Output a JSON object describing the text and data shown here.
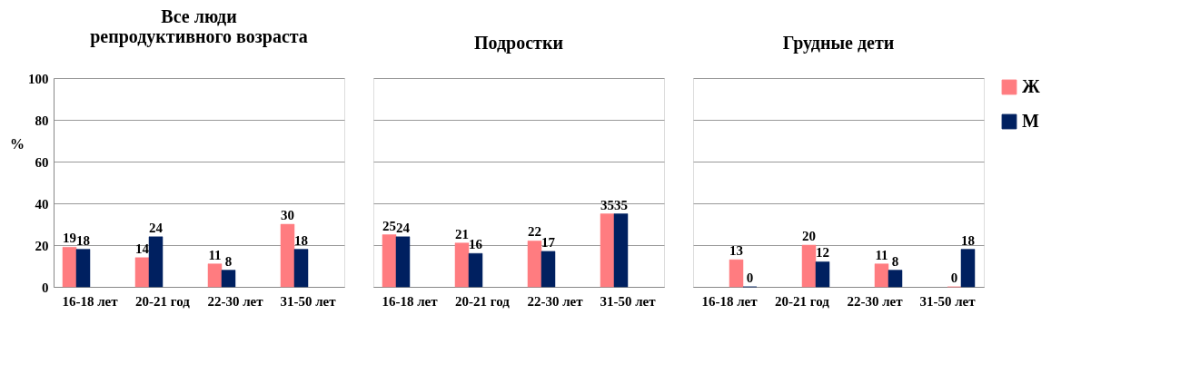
{
  "chart_data": [
    {
      "type": "bar",
      "title": "Все люди репродуктивного возраста",
      "ylabel": "%",
      "categories": [
        "16-18 лет",
        "20-21 год",
        "22-30 лет",
        "31-50 лет"
      ],
      "series": [
        {
          "color": "#ff7c80",
          "values": [
            19,
            14,
            11,
            30
          ]
        },
        {
          "color": "#002060",
          "values": [
            18,
            24,
            8,
            18
          ]
        }
      ],
      "ylim": [
        0,
        100
      ],
      "yticks": [
        0,
        20,
        40,
        60,
        80,
        100
      ],
      "grid": "y",
      "data_labels": true
    },
    {
      "type": "bar",
      "title": "Подростки",
      "categories": [
        "16-18 лет",
        "20-21 год",
        "22-30 лет",
        "31-50 лет"
      ],
      "series": [
        {
          "color": "#ff7c80",
          "values": [
            25,
            21,
            22,
            35
          ]
        },
        {
          "color": "#002060",
          "values": [
            24,
            16,
            17,
            35
          ]
        }
      ],
      "ylim": [
        0,
        100
      ],
      "yticks": [
        0,
        20,
        40,
        60,
        80,
        100
      ],
      "grid": "y",
      "data_labels": true,
      "tick_labels": "x"
    },
    {
      "type": "bar",
      "title": "Грудные дети",
      "categories": [
        "16-18 лет",
        "20-21 год",
        "22-30 лет",
        "31-50 лет"
      ],
      "series": [
        {
          "name": "Ж",
          "color": "#ff7c80",
          "values": [
            13,
            20,
            11,
            0
          ]
        },
        {
          "name": "М",
          "color": "#002060",
          "values": [
            0,
            12,
            8,
            18
          ]
        }
      ],
      "ylim": [
        0,
        100
      ],
      "yticks": [
        0,
        20,
        40,
        60,
        80,
        100
      ],
      "grid": "y",
      "data_labels": true,
      "tick_labels": "x",
      "legend": "right"
    }
  ]
}
